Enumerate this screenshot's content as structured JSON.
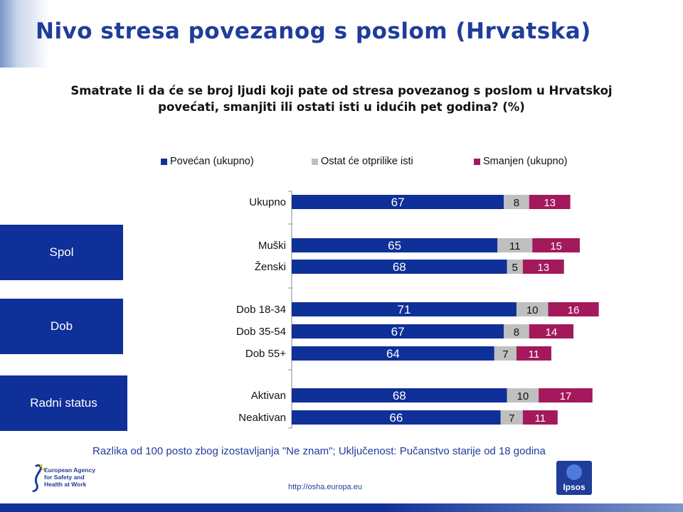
{
  "header": {
    "title": "Nivo stresa povezanog s poslom (Hrvatska)",
    "question": "Smatrate li da će se broj ljudi koji pate od stresa povezanog s poslom u Hrvatskoj povećati, smanjiti ili ostati isti u idućih pet godina? (%)"
  },
  "groups": [
    {
      "label": "Spol"
    },
    {
      "label": "Dob"
    },
    {
      "label": "Radni status"
    }
  ],
  "chart_data": {
    "type": "bar",
    "orientation": "horizontal",
    "stacked": true,
    "categories": [
      "Ukupno",
      "Muški",
      "Ženski",
      "Dob 18-34",
      "Dob 35-54",
      "Dob 55+",
      "Aktivan",
      "Neaktivan"
    ],
    "series": [
      {
        "name": "Povećan (ukupno)",
        "color": "#0f2f99",
        "values": [
          67,
          65,
          68,
          71,
          67,
          64,
          68,
          66
        ]
      },
      {
        "name": "Ostat će otprilike isti",
        "color": "#bfbfbf",
        "values": [
          8,
          11,
          5,
          10,
          8,
          7,
          10,
          7
        ]
      },
      {
        "name": "Smanjen (ukupno)",
        "color": "#a3195b",
        "values": [
          13,
          15,
          13,
          16,
          14,
          11,
          17,
          11
        ]
      }
    ],
    "legend_position": "top",
    "grid": false
  },
  "footer": {
    "note": "Razlika od 100 posto zbog izostavljanja \"Ne znam\"; Uključenost: Pučanstvo starije od 18 godina",
    "url": "http://osha.europa.eu",
    "agency_name": "European Agency for Safety and Health at Work",
    "ipsos": "Ipsos"
  },
  "colors": {
    "title": "#1f3d99",
    "group_box": "#0f2f99"
  },
  "icons": {
    "agency_logo": "eu-osha-logo-icon",
    "ipsos_logo": "ipsos-logo-icon"
  }
}
